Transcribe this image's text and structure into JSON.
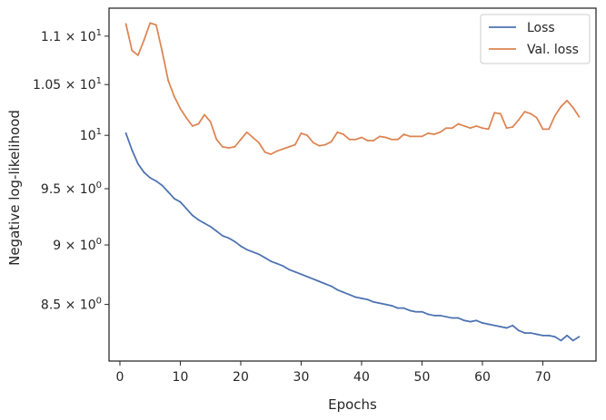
{
  "chart_data": {
    "type": "line",
    "xlabel": "Epochs",
    "ylabel": "Negative log-likelihood",
    "xlim": [
      -1.8,
      78.8
    ],
    "ylim": [
      8.05,
      11.3
    ],
    "yscale": "log",
    "grid": false,
    "legend_position": "top-right",
    "x_ticks": [
      0,
      10,
      20,
      30,
      40,
      50,
      60,
      70
    ],
    "x_tick_labels": [
      "0",
      "10",
      "20",
      "30",
      "40",
      "50",
      "60",
      "70"
    ],
    "y_ticks": [
      {
        "value": 8.5,
        "mantissa": "8.5",
        "base": "10",
        "exponent": "0"
      },
      {
        "value": 9,
        "mantissa": "9",
        "base": "10",
        "exponent": "0"
      },
      {
        "value": 9.5,
        "mantissa": "9.5",
        "base": "10",
        "exponent": "0"
      },
      {
        "value": 10,
        "mantissa": "",
        "base": "10",
        "exponent": "1"
      },
      {
        "value": 10.5,
        "mantissa": "1.05",
        "base": "10",
        "exponent": "1"
      },
      {
        "value": 11,
        "mantissa": "1.1",
        "base": "10",
        "exponent": "1"
      }
    ],
    "tick_times_sign": "×",
    "x": [
      1,
      2,
      3,
      4,
      5,
      6,
      7,
      8,
      9,
      10,
      11,
      12,
      13,
      14,
      15,
      16,
      17,
      18,
      19,
      20,
      21,
      22,
      23,
      24,
      25,
      26,
      27,
      28,
      29,
      30,
      31,
      32,
      33,
      34,
      35,
      36,
      37,
      38,
      39,
      40,
      41,
      42,
      43,
      44,
      45,
      46,
      47,
      48,
      49,
      50,
      51,
      52,
      53,
      54,
      55,
      56,
      57,
      58,
      59,
      60,
      61,
      62,
      63,
      64,
      65,
      66,
      67,
      68,
      69,
      70,
      71,
      72,
      73,
      74,
      75,
      76
    ],
    "series": [
      {
        "name": "Loss",
        "color": "#4c72b0",
        "values": [
          10.02,
          9.86,
          9.73,
          9.65,
          9.6,
          9.57,
          9.53,
          9.47,
          9.41,
          9.38,
          9.32,
          9.26,
          9.22,
          9.19,
          9.16,
          9.12,
          9.08,
          9.06,
          9.03,
          8.99,
          8.96,
          8.94,
          8.92,
          8.89,
          8.86,
          8.84,
          8.82,
          8.79,
          8.77,
          8.75,
          8.73,
          8.71,
          8.69,
          8.67,
          8.65,
          8.62,
          8.6,
          8.58,
          8.56,
          8.55,
          8.54,
          8.52,
          8.51,
          8.5,
          8.49,
          8.47,
          8.47,
          8.45,
          8.44,
          8.44,
          8.42,
          8.41,
          8.41,
          8.4,
          8.39,
          8.39,
          8.37,
          8.36,
          8.37,
          8.35,
          8.34,
          8.33,
          8.32,
          8.31,
          8.33,
          8.29,
          8.27,
          8.27,
          8.26,
          8.25,
          8.25,
          8.24,
          8.21,
          8.25,
          8.21,
          8.24
        ]
      },
      {
        "name": "Val. loss",
        "color": "#dd8452",
        "values": [
          11.13,
          10.85,
          10.8,
          10.96,
          11.14,
          11.12,
          10.84,
          10.54,
          10.38,
          10.26,
          10.17,
          10.09,
          10.11,
          10.2,
          10.13,
          9.96,
          9.89,
          9.88,
          9.89,
          9.96,
          10.03,
          9.98,
          9.93,
          9.84,
          9.82,
          9.85,
          9.87,
          9.89,
          9.91,
          10.02,
          10.0,
          9.93,
          9.9,
          9.91,
          9.94,
          10.03,
          10.01,
          9.96,
          9.96,
          9.98,
          9.95,
          9.95,
          9.99,
          9.98,
          9.96,
          9.96,
          10.01,
          9.99,
          9.99,
          9.99,
          10.02,
          10.01,
          10.03,
          10.07,
          10.07,
          10.11,
          10.09,
          10.07,
          10.09,
          10.07,
          10.06,
          10.22,
          10.21,
          10.07,
          10.08,
          10.15,
          10.23,
          10.21,
          10.17,
          10.06,
          10.06,
          10.19,
          10.28,
          10.34,
          10.27,
          10.18
        ]
      }
    ]
  }
}
